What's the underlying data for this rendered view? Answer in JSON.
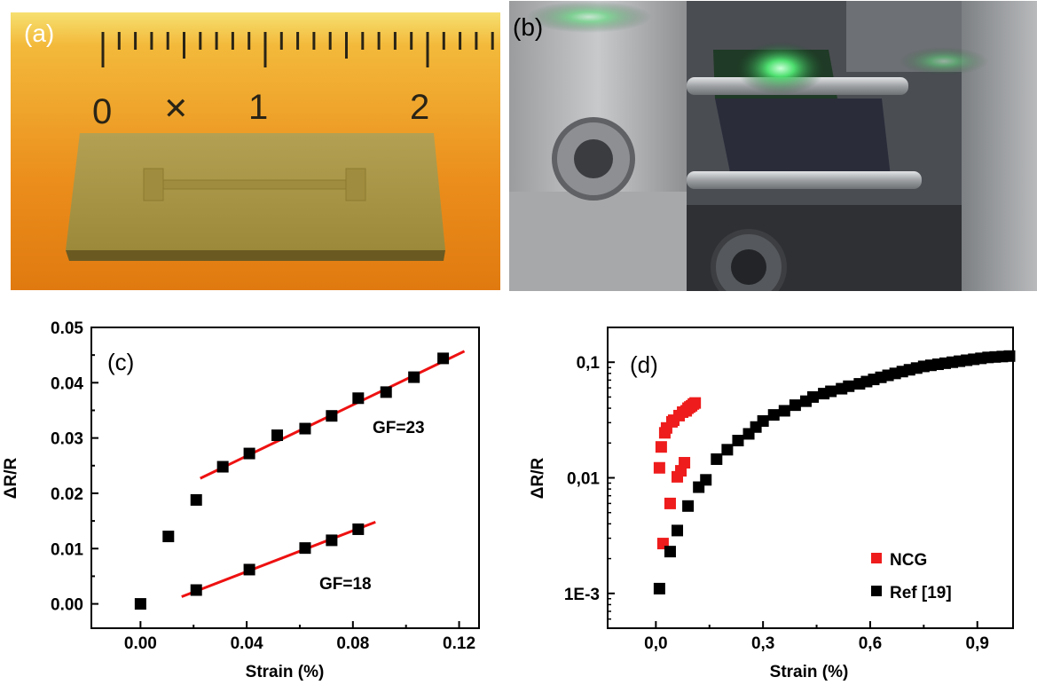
{
  "panels": {
    "a": {
      "label": "(a)",
      "ruler_numbers": [
        "0",
        "1",
        "2"
      ]
    },
    "b": {
      "label": "(b)"
    },
    "c": {
      "label": "(c)"
    },
    "d": {
      "label": "(d)"
    }
  },
  "colors": {
    "ncg": "#ee1c1c",
    "ref": "#000000",
    "fit": "#ee1111",
    "ruler": "#f0a224",
    "photo_b_bg": "#4a4d52"
  },
  "chart_data": [
    {
      "type": "scatter",
      "title": "",
      "xlabel": "Strain (%)",
      "ylabel": "ΔR/R",
      "xlim": [
        -0.0185,
        0.1275
      ],
      "ylim": [
        -0.0044,
        0.05
      ],
      "xticks": [
        0.0,
        0.04,
        0.08,
        0.12
      ],
      "xtick_labels": [
        "0.00",
        "0.04",
        "0.08",
        "0.12"
      ],
      "yticks": [
        0.0,
        0.01,
        0.02,
        0.03,
        0.04,
        0.05
      ],
      "ytick_labels": [
        "0.00",
        "0.01",
        "0.02",
        "0.03",
        "0.04",
        "0.05"
      ],
      "grid": false,
      "series": [
        {
          "name": "",
          "marker": "square",
          "x": [
            0.0,
            0.0105,
            0.021,
            0.031,
            0.041,
            0.0515,
            0.062,
            0.072,
            0.082,
            0.0925,
            0.103,
            0.114,
            0.021,
            0.041,
            0.062,
            0.072,
            0.082
          ],
          "y": [
            0.0,
            0.0122,
            0.0188,
            0.0248,
            0.0272,
            0.0305,
            0.0317,
            0.034,
            0.0372,
            0.0383,
            0.041,
            0.0444,
            0.0025,
            0.0062,
            0.0101,
            0.0115,
            0.0135
          ]
        }
      ],
      "fits": [
        {
          "name": "GF=23",
          "x": [
            0.0225,
            0.122
          ],
          "y": [
            0.0227,
            0.0457
          ]
        },
        {
          "name": "GF=18",
          "x": [
            0.0155,
            0.0885
          ],
          "y": [
            0.0013,
            0.0148
          ]
        }
      ],
      "annotations": [
        "GF=23",
        "GF=18"
      ]
    },
    {
      "type": "scatter",
      "title": "",
      "xlabel": "Strain (%)",
      "ylabel": "ΔR/R",
      "xscale": "linear",
      "yscale": "log",
      "xlim": [
        -0.135,
        1.0
      ],
      "ylim": [
        0.0005,
        0.2
      ],
      "xticks": [
        0.0,
        0.3,
        0.6,
        0.9
      ],
      "xtick_labels": [
        "0,0",
        "0,3",
        "0,6",
        "0,9"
      ],
      "yticks": [
        0.001,
        0.01,
        0.1
      ],
      "ytick_labels": [
        "1E-3",
        "0,01",
        "0,1"
      ],
      "grid": false,
      "legend_position": "bottom-right",
      "series": [
        {
          "name": "NCG",
          "marker": "square",
          "x": [
            0.01,
            0.015,
            0.02,
            0.025,
            0.03,
            0.04,
            0.045,
            0.05,
            0.06,
            0.065,
            0.07,
            0.075,
            0.08,
            0.085,
            0.09,
            0.095,
            0.1,
            0.105,
            0.11
          ],
          "y": [
            0.0122,
            0.0185,
            0.0027,
            0.0245,
            0.027,
            0.006,
            0.0305,
            0.0315,
            0.0102,
            0.0345,
            0.0115,
            0.037,
            0.0135,
            0.038,
            0.04,
            0.041,
            0.042,
            0.0435,
            0.0444
          ]
        },
        {
          "name": "Ref [19]",
          "marker": "square",
          "x": [
            0.01,
            0.04,
            0.06,
            0.09,
            0.12,
            0.14,
            0.17,
            0.2,
            0.23,
            0.26,
            0.28,
            0.3,
            0.33,
            0.36,
            0.39,
            0.42,
            0.44,
            0.47,
            0.49,
            0.52,
            0.54,
            0.57,
            0.59,
            0.61,
            0.63,
            0.65,
            0.67,
            0.69,
            0.71,
            0.73,
            0.75,
            0.77,
            0.79,
            0.81,
            0.83,
            0.85,
            0.87,
            0.89,
            0.91,
            0.93,
            0.95,
            0.97,
            0.99
          ],
          "y": [
            0.0011,
            0.0023,
            0.0035,
            0.0057,
            0.0083,
            0.0096,
            0.0145,
            0.0175,
            0.021,
            0.024,
            0.0275,
            0.031,
            0.035,
            0.038,
            0.0425,
            0.046,
            0.05,
            0.0535,
            0.056,
            0.059,
            0.062,
            0.065,
            0.068,
            0.071,
            0.074,
            0.077,
            0.08,
            0.083,
            0.086,
            0.089,
            0.092,
            0.094,
            0.096,
            0.098,
            0.1,
            0.102,
            0.104,
            0.106,
            0.108,
            0.11,
            0.111,
            0.112,
            0.113
          ]
        }
      ]
    }
  ]
}
